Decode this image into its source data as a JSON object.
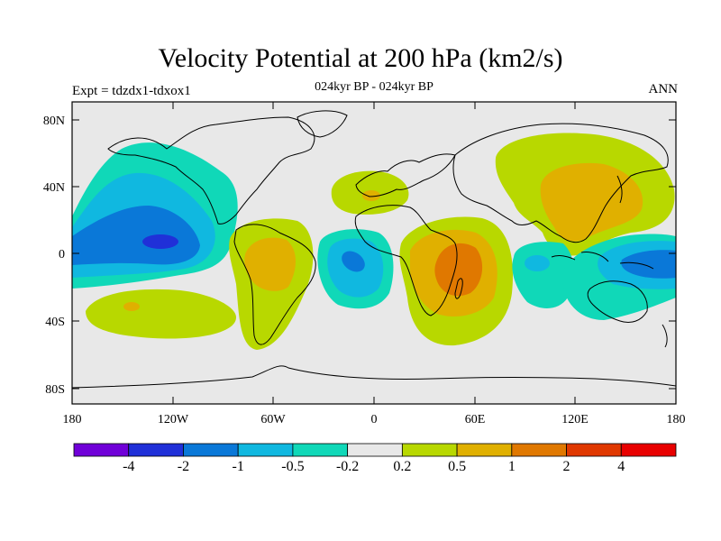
{
  "title": "Velocity Potential at 200 hPa (km2/s)",
  "subtitle": "024kyr BP - 024kyr BP",
  "left_label": "Expt = tdzdx1-tdxox1",
  "right_label": "ANN",
  "map": {
    "lat_ticks": [
      "80N",
      "40N",
      "0",
      "40S",
      "80S"
    ],
    "lon_ticks": [
      "180",
      "120W",
      "60W",
      "0",
      "60E",
      "120E",
      "180"
    ]
  },
  "colorbar": {
    "colors": [
      "#7000d8",
      "#2030d8",
      "#0a78d8",
      "#10b8e0",
      "#10d8b8",
      "#e8e8e8",
      "#b8d800",
      "#e0b000",
      "#e07800",
      "#e03800",
      "#e80000"
    ],
    "labels": [
      "-4",
      "-2",
      "-1",
      "-0.5",
      "-0.2",
      "0.2",
      "0.5",
      "1",
      "2",
      "4"
    ]
  },
  "colors": {
    "background": "#e8e8e8",
    "neg_light": "#10d8b8",
    "neg_mid": "#10b8e0",
    "neg_strong": "#0a78d8",
    "neg_stronger": "#2030d8",
    "pos_light": "#b8d800",
    "pos_mid": "#e0b000",
    "pos_strong": "#e07800"
  }
}
